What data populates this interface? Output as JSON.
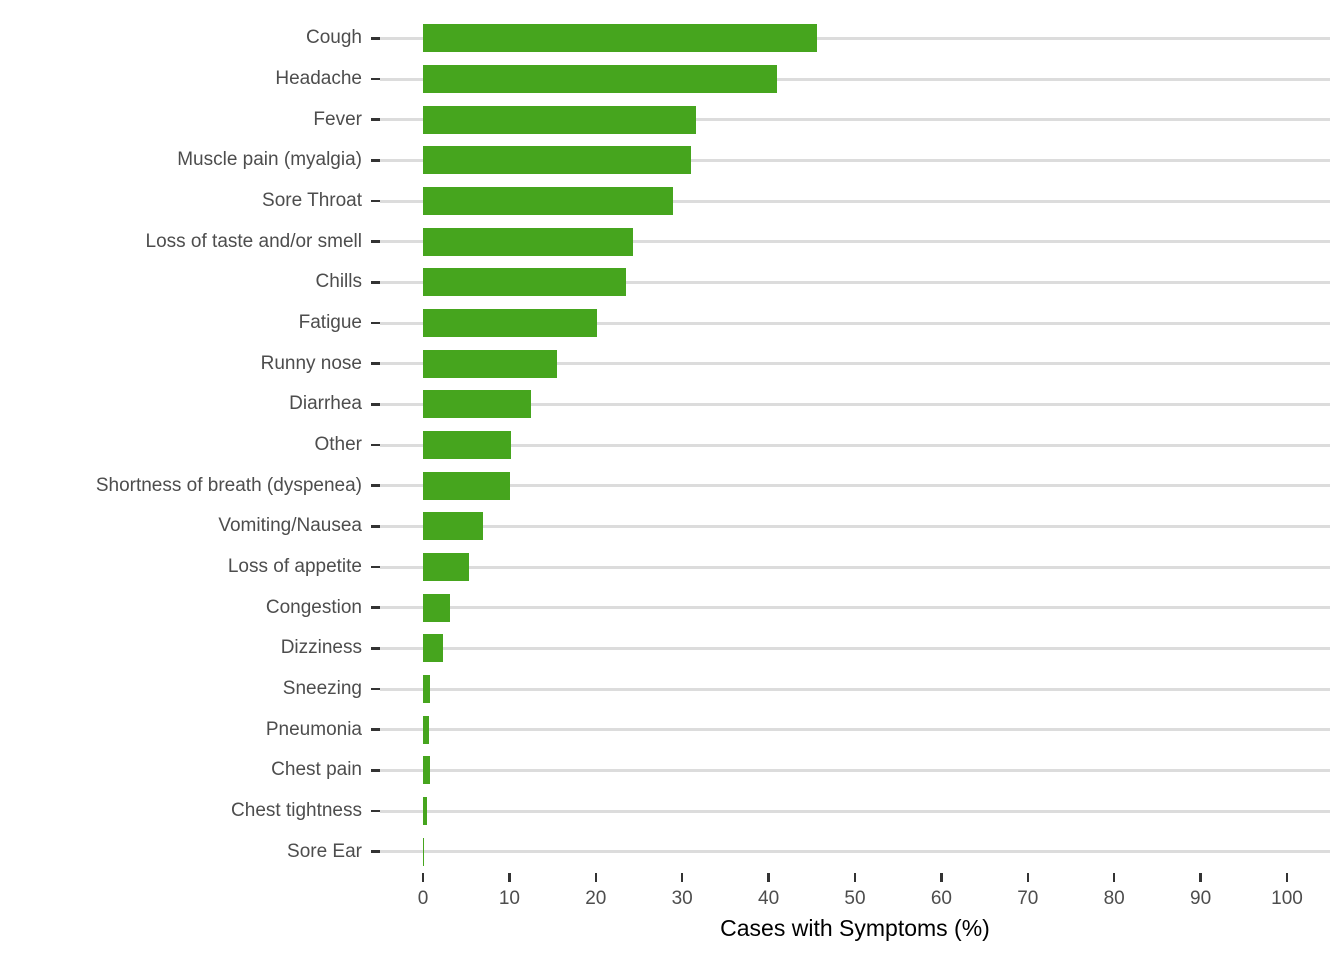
{
  "chart_data": {
    "type": "bar",
    "orientation": "horizontal",
    "title": "",
    "xlabel": "Cases with Symptoms (%)",
    "ylabel": "",
    "xlim": [
      0,
      100
    ],
    "x_ticks": [
      0,
      10,
      20,
      30,
      40,
      50,
      60,
      70,
      80,
      90,
      100
    ],
    "grid": "horizontal-major-only",
    "legend": "none",
    "categories": [
      "Cough",
      "Headache",
      "Fever",
      "Muscle pain (myalgia)",
      "Sore Throat",
      "Loss of taste and/or smell",
      "Chills",
      "Fatigue",
      "Runny nose",
      "Diarrhea",
      "Other",
      "Shortness of breath (dyspenea)",
      "Vomiting/Nausea",
      "Loss of appetite",
      "Congestion",
      "Dizziness",
      "Sneezing",
      "Pneumonia",
      "Chest pain",
      "Chest tightness",
      "Sore Ear"
    ],
    "values": [
      45.6,
      41.0,
      31.6,
      31.0,
      28.9,
      24.3,
      23.5,
      20.1,
      15.5,
      12.5,
      10.2,
      10.1,
      6.9,
      5.3,
      3.1,
      2.3,
      0.8,
      0.7,
      0.8,
      0.5,
      0.15
    ],
    "colors": {
      "bar": "#46a51e",
      "gridline": "#dcdcdc",
      "tick": "#333333",
      "axis_text": "#4d4d4d",
      "axis_title": "#000000",
      "background": "#ffffff"
    }
  }
}
